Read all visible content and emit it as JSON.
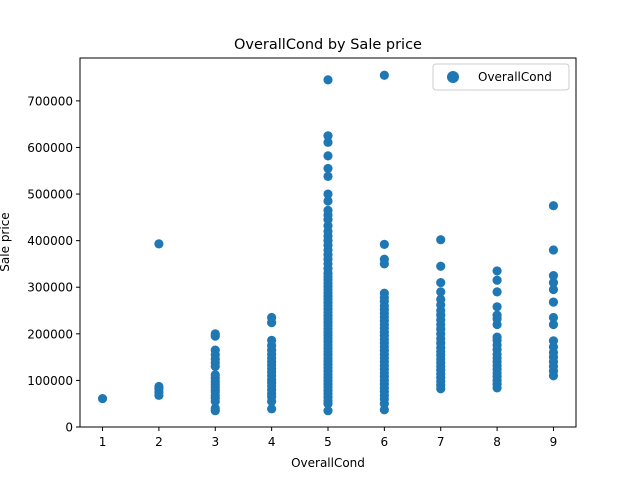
{
  "chart_data": {
    "type": "scatter",
    "title": "OverallCond by Sale price",
    "xlabel": "OverallCond",
    "ylabel": "Sale price",
    "xlim": [
      0.6,
      9.4
    ],
    "ylim": [
      0,
      792000
    ],
    "x_ticks": [
      1,
      2,
      3,
      4,
      5,
      6,
      7,
      8,
      9
    ],
    "y_ticks": [
      0,
      100000,
      200000,
      300000,
      400000,
      500000,
      600000,
      700000
    ],
    "grid": false,
    "legend_position": "top-right",
    "marker_color": "#1f77b4",
    "series": [
      {
        "name": "OverallCond",
        "points": [
          {
            "x": 1,
            "y": 61000
          },
          {
            "x": 2,
            "y": 68000
          },
          {
            "x": 2,
            "y": 75000
          },
          {
            "x": 2,
            "y": 82000
          },
          {
            "x": 2,
            "y": 87000
          },
          {
            "x": 2,
            "y": 393000
          },
          {
            "x": 3,
            "y": 35000
          },
          {
            "x": 3,
            "y": 40000
          },
          {
            "x": 3,
            "y": 55000
          },
          {
            "x": 3,
            "y": 62000
          },
          {
            "x": 3,
            "y": 68000
          },
          {
            "x": 3,
            "y": 75000
          },
          {
            "x": 3,
            "y": 80000
          },
          {
            "x": 3,
            "y": 86000
          },
          {
            "x": 3,
            "y": 92000
          },
          {
            "x": 3,
            "y": 98000
          },
          {
            "x": 3,
            "y": 105000
          },
          {
            "x": 3,
            "y": 112000
          },
          {
            "x": 3,
            "y": 130000
          },
          {
            "x": 3,
            "y": 138000
          },
          {
            "x": 3,
            "y": 146000
          },
          {
            "x": 3,
            "y": 155000
          },
          {
            "x": 3,
            "y": 165000
          },
          {
            "x": 3,
            "y": 195000
          },
          {
            "x": 3,
            "y": 200000
          },
          {
            "x": 4,
            "y": 39000
          },
          {
            "x": 4,
            "y": 55000
          },
          {
            "x": 4,
            "y": 65000
          },
          {
            "x": 4,
            "y": 72000
          },
          {
            "x": 4,
            "y": 80000
          },
          {
            "x": 4,
            "y": 88000
          },
          {
            "x": 4,
            "y": 95000
          },
          {
            "x": 4,
            "y": 102000
          },
          {
            "x": 4,
            "y": 110000
          },
          {
            "x": 4,
            "y": 118000
          },
          {
            "x": 4,
            "y": 125000
          },
          {
            "x": 4,
            "y": 133000
          },
          {
            "x": 4,
            "y": 140000
          },
          {
            "x": 4,
            "y": 148000
          },
          {
            "x": 4,
            "y": 156000
          },
          {
            "x": 4,
            "y": 165000
          },
          {
            "x": 4,
            "y": 175000
          },
          {
            "x": 4,
            "y": 186000
          },
          {
            "x": 4,
            "y": 224000
          },
          {
            "x": 4,
            "y": 235000
          },
          {
            "x": 5,
            "y": 35000
          },
          {
            "x": 5,
            "y": 50000
          },
          {
            "x": 5,
            "y": 57000
          },
          {
            "x": 5,
            "y": 64000
          },
          {
            "x": 5,
            "y": 71000
          },
          {
            "x": 5,
            "y": 78000
          },
          {
            "x": 5,
            "y": 85000
          },
          {
            "x": 5,
            "y": 92000
          },
          {
            "x": 5,
            "y": 99000
          },
          {
            "x": 5,
            "y": 106000
          },
          {
            "x": 5,
            "y": 113000
          },
          {
            "x": 5,
            "y": 120000
          },
          {
            "x": 5,
            "y": 127000
          },
          {
            "x": 5,
            "y": 134000
          },
          {
            "x": 5,
            "y": 141000
          },
          {
            "x": 5,
            "y": 148000
          },
          {
            "x": 5,
            "y": 155000
          },
          {
            "x": 5,
            "y": 162000
          },
          {
            "x": 5,
            "y": 169000
          },
          {
            "x": 5,
            "y": 176000
          },
          {
            "x": 5,
            "y": 183000
          },
          {
            "x": 5,
            "y": 190000
          },
          {
            "x": 5,
            "y": 197000
          },
          {
            "x": 5,
            "y": 204000
          },
          {
            "x": 5,
            "y": 211000
          },
          {
            "x": 5,
            "y": 218000
          },
          {
            "x": 5,
            "y": 225000
          },
          {
            "x": 5,
            "y": 232000
          },
          {
            "x": 5,
            "y": 239000
          },
          {
            "x": 5,
            "y": 246000
          },
          {
            "x": 5,
            "y": 253000
          },
          {
            "x": 5,
            "y": 260000
          },
          {
            "x": 5,
            "y": 267000
          },
          {
            "x": 5,
            "y": 274000
          },
          {
            "x": 5,
            "y": 281000
          },
          {
            "x": 5,
            "y": 288000
          },
          {
            "x": 5,
            "y": 295000
          },
          {
            "x": 5,
            "y": 302000
          },
          {
            "x": 5,
            "y": 309000
          },
          {
            "x": 5,
            "y": 316000
          },
          {
            "x": 5,
            "y": 323000
          },
          {
            "x": 5,
            "y": 330000
          },
          {
            "x": 5,
            "y": 340000
          },
          {
            "x": 5,
            "y": 350000
          },
          {
            "x": 5,
            "y": 360000
          },
          {
            "x": 5,
            "y": 370000
          },
          {
            "x": 5,
            "y": 380000
          },
          {
            "x": 5,
            "y": 390000
          },
          {
            "x": 5,
            "y": 400000
          },
          {
            "x": 5,
            "y": 410000
          },
          {
            "x": 5,
            "y": 420000
          },
          {
            "x": 5,
            "y": 432000
          },
          {
            "x": 5,
            "y": 445000
          },
          {
            "x": 5,
            "y": 455000
          },
          {
            "x": 5,
            "y": 465000
          },
          {
            "x": 5,
            "y": 485000
          },
          {
            "x": 5,
            "y": 500000
          },
          {
            "x": 5,
            "y": 538000
          },
          {
            "x": 5,
            "y": 555000
          },
          {
            "x": 5,
            "y": 582000
          },
          {
            "x": 5,
            "y": 611000
          },
          {
            "x": 5,
            "y": 625000
          },
          {
            "x": 5,
            "y": 745000
          },
          {
            "x": 6,
            "y": 37000
          },
          {
            "x": 6,
            "y": 50000
          },
          {
            "x": 6,
            "y": 60000
          },
          {
            "x": 6,
            "y": 68000
          },
          {
            "x": 6,
            "y": 76000
          },
          {
            "x": 6,
            "y": 84000
          },
          {
            "x": 6,
            "y": 92000
          },
          {
            "x": 6,
            "y": 100000
          },
          {
            "x": 6,
            "y": 108000
          },
          {
            "x": 6,
            "y": 116000
          },
          {
            "x": 6,
            "y": 124000
          },
          {
            "x": 6,
            "y": 132000
          },
          {
            "x": 6,
            "y": 140000
          },
          {
            "x": 6,
            "y": 148000
          },
          {
            "x": 6,
            "y": 156000
          },
          {
            "x": 6,
            "y": 164000
          },
          {
            "x": 6,
            "y": 172000
          },
          {
            "x": 6,
            "y": 180000
          },
          {
            "x": 6,
            "y": 188000
          },
          {
            "x": 6,
            "y": 196000
          },
          {
            "x": 6,
            "y": 204000
          },
          {
            "x": 6,
            "y": 212000
          },
          {
            "x": 6,
            "y": 220000
          },
          {
            "x": 6,
            "y": 228000
          },
          {
            "x": 6,
            "y": 236000
          },
          {
            "x": 6,
            "y": 244000
          },
          {
            "x": 6,
            "y": 252000
          },
          {
            "x": 6,
            "y": 260000
          },
          {
            "x": 6,
            "y": 270000
          },
          {
            "x": 6,
            "y": 278000
          },
          {
            "x": 6,
            "y": 287000
          },
          {
            "x": 6,
            "y": 350000
          },
          {
            "x": 6,
            "y": 360000
          },
          {
            "x": 6,
            "y": 392000
          },
          {
            "x": 6,
            "y": 755000
          },
          {
            "x": 7,
            "y": 82000
          },
          {
            "x": 7,
            "y": 90000
          },
          {
            "x": 7,
            "y": 98000
          },
          {
            "x": 7,
            "y": 106000
          },
          {
            "x": 7,
            "y": 114000
          },
          {
            "x": 7,
            "y": 122000
          },
          {
            "x": 7,
            "y": 130000
          },
          {
            "x": 7,
            "y": 138000
          },
          {
            "x": 7,
            "y": 146000
          },
          {
            "x": 7,
            "y": 154000
          },
          {
            "x": 7,
            "y": 162000
          },
          {
            "x": 7,
            "y": 170000
          },
          {
            "x": 7,
            "y": 180000
          },
          {
            "x": 7,
            "y": 190000
          },
          {
            "x": 7,
            "y": 200000
          },
          {
            "x": 7,
            "y": 210000
          },
          {
            "x": 7,
            "y": 220000
          },
          {
            "x": 7,
            "y": 230000
          },
          {
            "x": 7,
            "y": 240000
          },
          {
            "x": 7,
            "y": 250000
          },
          {
            "x": 7,
            "y": 262000
          },
          {
            "x": 7,
            "y": 274000
          },
          {
            "x": 7,
            "y": 290000
          },
          {
            "x": 7,
            "y": 310000
          },
          {
            "x": 7,
            "y": 345000
          },
          {
            "x": 7,
            "y": 402000
          },
          {
            "x": 8,
            "y": 84000
          },
          {
            "x": 8,
            "y": 92000
          },
          {
            "x": 8,
            "y": 100000
          },
          {
            "x": 8,
            "y": 108000
          },
          {
            "x": 8,
            "y": 116000
          },
          {
            "x": 8,
            "y": 124000
          },
          {
            "x": 8,
            "y": 132000
          },
          {
            "x": 8,
            "y": 140000
          },
          {
            "x": 8,
            "y": 148000
          },
          {
            "x": 8,
            "y": 156000
          },
          {
            "x": 8,
            "y": 166000
          },
          {
            "x": 8,
            "y": 176000
          },
          {
            "x": 8,
            "y": 186000
          },
          {
            "x": 8,
            "y": 193000
          },
          {
            "x": 8,
            "y": 220000
          },
          {
            "x": 8,
            "y": 232000
          },
          {
            "x": 8,
            "y": 240000
          },
          {
            "x": 8,
            "y": 258000
          },
          {
            "x": 8,
            "y": 290000
          },
          {
            "x": 8,
            "y": 315000
          },
          {
            "x": 8,
            "y": 335000
          },
          {
            "x": 9,
            "y": 110000
          },
          {
            "x": 9,
            "y": 120000
          },
          {
            "x": 9,
            "y": 130000
          },
          {
            "x": 9,
            "y": 140000
          },
          {
            "x": 9,
            "y": 150000
          },
          {
            "x": 9,
            "y": 160000
          },
          {
            "x": 9,
            "y": 172000
          },
          {
            "x": 9,
            "y": 185000
          },
          {
            "x": 9,
            "y": 220000
          },
          {
            "x": 9,
            "y": 235000
          },
          {
            "x": 9,
            "y": 268000
          },
          {
            "x": 9,
            "y": 295000
          },
          {
            "x": 9,
            "y": 310000
          },
          {
            "x": 9,
            "y": 325000
          },
          {
            "x": 9,
            "y": 380000
          },
          {
            "x": 9,
            "y": 475000
          }
        ]
      }
    ]
  }
}
